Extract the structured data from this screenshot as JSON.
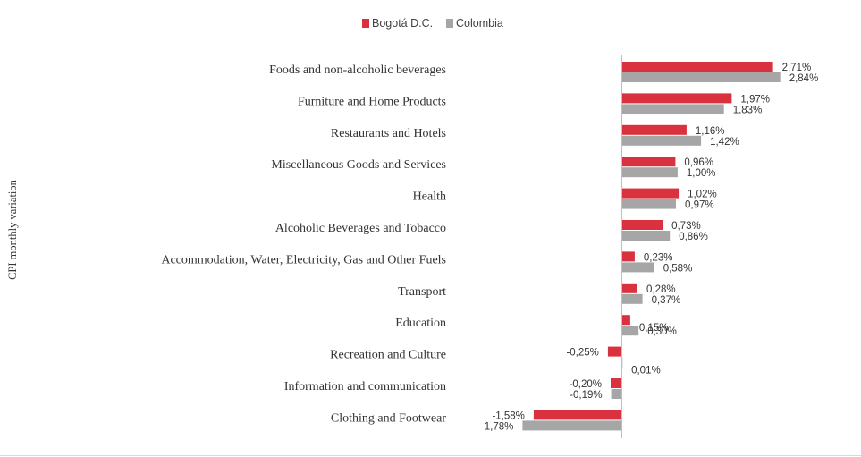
{
  "chart_data": {
    "type": "bar",
    "orientation": "horizontal",
    "title": "",
    "xlabel": "",
    "ylabel": "CPI monthly variation",
    "categories": [
      "Foods and non-alcoholic beverages",
      "Furniture and Home Products",
      "Restaurants and Hotels",
      "Miscellaneous Goods and Services",
      "Health",
      "Alcoholic Beverages and Tobacco",
      "Accommodation, Water, Electricity, Gas and Other Fuels",
      "Transport",
      "Education",
      "Recreation and Culture",
      "Information and communication",
      "Clothing and Footwear"
    ],
    "series": [
      {
        "name": "Bogotá D.C.",
        "color": "#d9313d",
        "values": [
          2.71,
          1.97,
          1.16,
          0.96,
          1.02,
          0.73,
          0.23,
          0.28,
          0.15,
          -0.25,
          -0.2,
          -1.58
        ],
        "labels": [
          "2,71%",
          "1,97%",
          "1,16%",
          "0,96%",
          "1,02%",
          "0,73%",
          "0,23%",
          "0,28%",
          "0,15%",
          "-0,25%",
          "-0,20%",
          "-1,58%"
        ]
      },
      {
        "name": "Colombia",
        "color": "#a6a6a6",
        "values": [
          2.84,
          1.83,
          1.42,
          1.0,
          0.97,
          0.86,
          0.58,
          0.37,
          0.3,
          0.01,
          -0.19,
          -1.78
        ],
        "labels": [
          "2,84%",
          "1,83%",
          "1,42%",
          "1,00%",
          "0,97%",
          "0,86%",
          "0,58%",
          "0,37%",
          "0,30%",
          "0,01%",
          "-0,19%",
          "-1,78%"
        ]
      }
    ],
    "legend_position": "top-center",
    "grid": false
  }
}
